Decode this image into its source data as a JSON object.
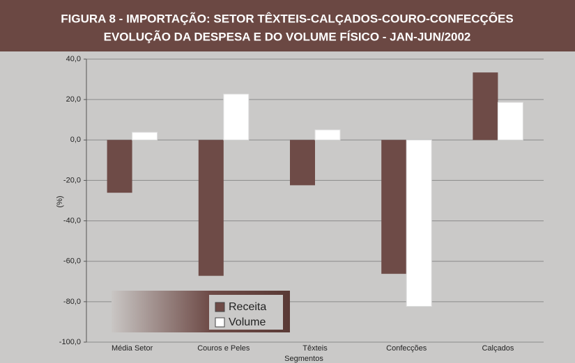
{
  "chart_data": {
    "type": "bar",
    "title": "FIGURA 8 - IMPORTAÇÃO: SETOR TÊXTEIS-CALÇADOS-COURO-CONFECÇÕES",
    "subtitle": "EVOLUÇÃO DA DESPESA E DO VOLUME FÍSICO - JAN-JUN/2002",
    "ylabel": "(%)",
    "xlabel": "Segmentos",
    "categories": [
      "Média Setor",
      "Couros e Peles",
      "Têxteis",
      "Confecções",
      "Calçados"
    ],
    "series": [
      {
        "name": "Receita",
        "color": "#6e4b47",
        "values": [
          -26.1,
          -67.2,
          -22.4,
          -66.2,
          33.4
        ]
      },
      {
        "name": "Volume",
        "color": "#ffffff",
        "values": [
          3.8,
          22.7,
          5.0,
          -82.3,
          18.6
        ]
      }
    ],
    "ylim": [
      -100,
      40
    ],
    "yticks": [
      {
        "value": -100,
        "label": "-100,0"
      },
      {
        "value": -80,
        "label": "-80,0"
      },
      {
        "value": -60,
        "label": "-60,0"
      },
      {
        "value": -40,
        "label": "-40,0"
      },
      {
        "value": -20,
        "label": "-20,0"
      },
      {
        "value": 0,
        "label": "0,0"
      },
      {
        "value": 20,
        "label": "20,0"
      },
      {
        "value": 40,
        "label": "40,0"
      }
    ],
    "grid": true,
    "legend": "bottom"
  }
}
